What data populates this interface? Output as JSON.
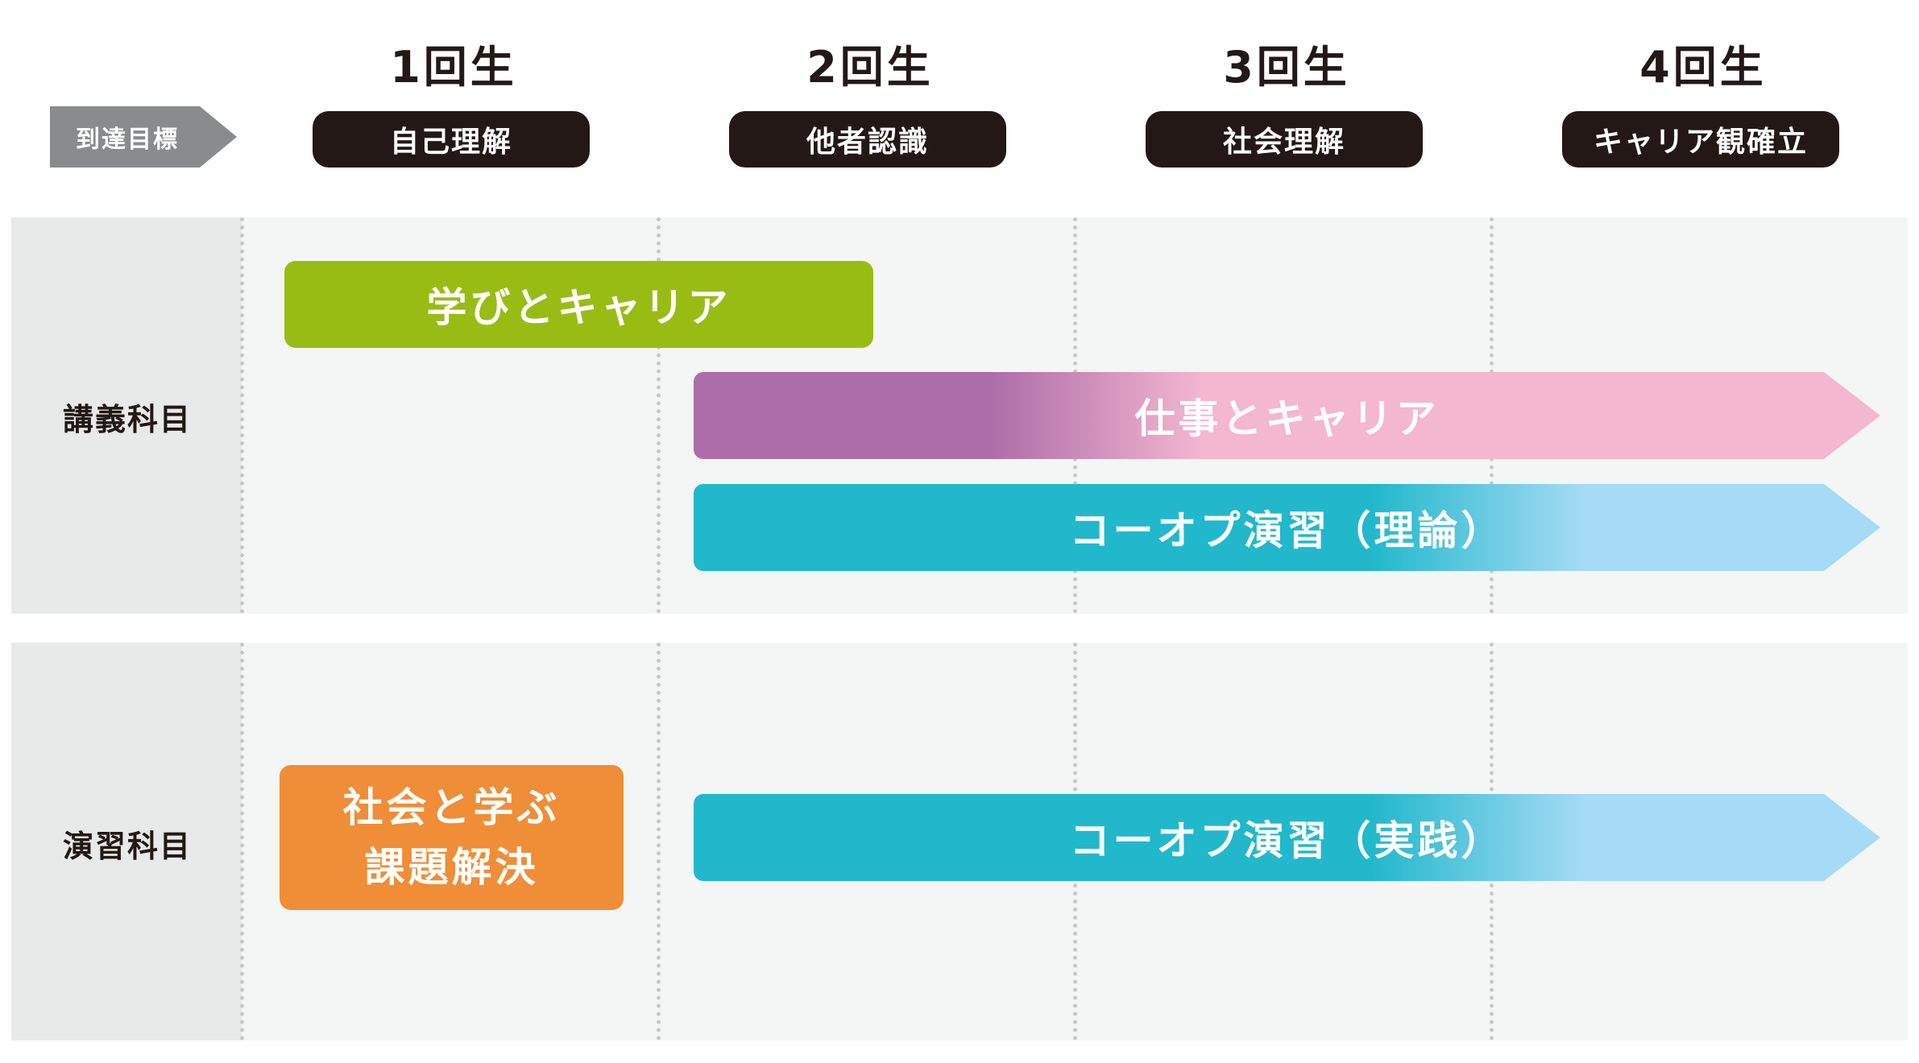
{
  "header": {
    "goal_label": "到達目標",
    "years": [
      {
        "label": "1回生",
        "goal": "自己理解"
      },
      {
        "label": "2回生",
        "goal": "他者認識"
      },
      {
        "label": "3回生",
        "goal": "社会理解"
      },
      {
        "label": "4回生",
        "goal": "キャリア観確立"
      }
    ]
  },
  "sections": {
    "lecture": {
      "label": "講義科目",
      "bars": [
        {
          "label": "学びとキャリア",
          "color": "#99bc15"
        },
        {
          "label": "仕事とキャリア",
          "colors": [
            "#ad6da8",
            "#f3b7d0"
          ]
        },
        {
          "label": "コーオプ演習（理論）",
          "colors": [
            "#21b8cc",
            "#a5dbf4"
          ]
        }
      ]
    },
    "practice": {
      "label": "演習科目",
      "bars": [
        {
          "line1": "社会と学ぶ",
          "line2": "課題解決",
          "color": "#f08d37"
        },
        {
          "label": "コーオプ演習（実践）",
          "colors": [
            "#21b8cc",
            "#a5dbf4"
          ]
        }
      ]
    }
  },
  "colors": {
    "heading": "#231815",
    "goal_arrow": "#8a8b8c",
    "panel": "#f4f5f5",
    "label_panel": "#e8e9e9",
    "divider": "#c7c8c8"
  }
}
